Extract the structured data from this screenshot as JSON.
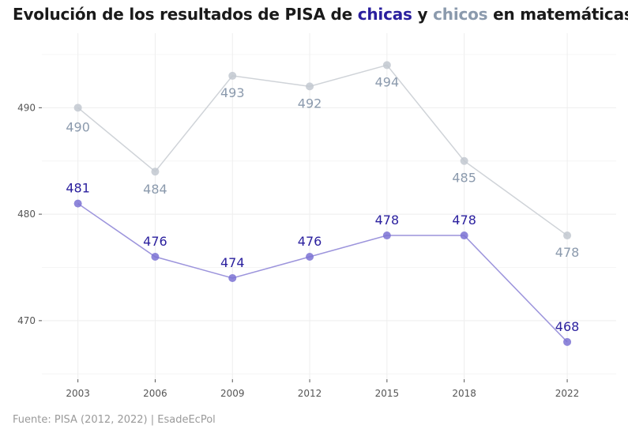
{
  "title": {
    "prefix": "Evolución de los resultados de PISA de ",
    "girls": "chicas",
    "middle": " y ",
    "boys": "chicos",
    "suffix": " en matemáticas"
  },
  "footer": "Fuente: PISA (2012, 2022) | EsadeEcPol",
  "colors": {
    "girls_text": "#2a1f9e",
    "girls_line": "#9c94dc",
    "girls_point": "#7b72d4",
    "boys_text": "#8b9aad",
    "boys_line": "#cfd3d8",
    "boys_point": "#c2c8d0",
    "grid": "#eeeeee"
  },
  "chart_data": {
    "type": "line",
    "x": [
      2003,
      2006,
      2009,
      2012,
      2015,
      2018,
      2022
    ],
    "x_tick_labels": [
      "2003",
      "2006",
      "2009",
      "2012",
      "2015",
      "2018",
      "2022"
    ],
    "y_ticks": [
      470,
      480,
      490
    ],
    "y_tick_labels": [
      "470",
      "480",
      "490"
    ],
    "ylim": [
      464.5,
      497
    ],
    "grid": true,
    "series": [
      {
        "name": "chicas",
        "values": [
          481,
          476,
          474,
          476,
          478,
          478,
          468
        ]
      },
      {
        "name": "chicos",
        "values": [
          490,
          484,
          493,
          492,
          494,
          485,
          478
        ]
      }
    ]
  }
}
